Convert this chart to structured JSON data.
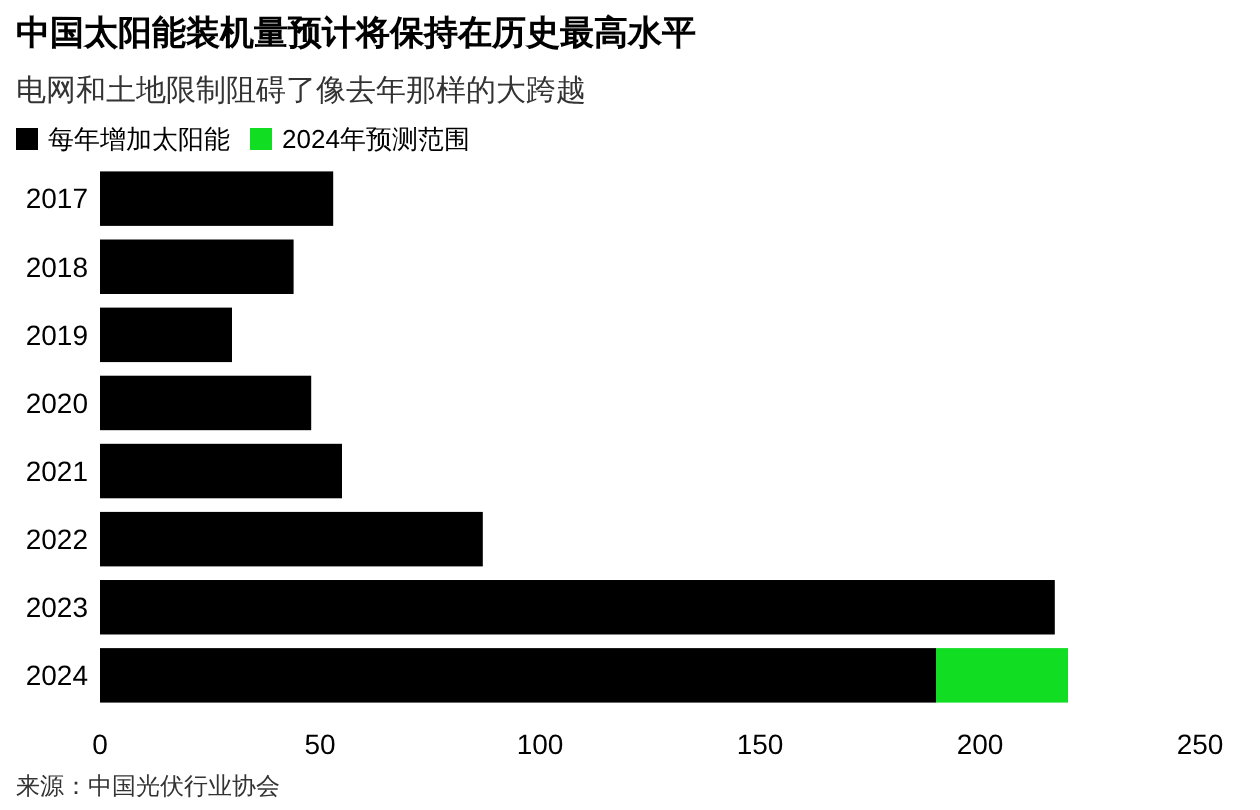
{
  "chart_data": {
    "type": "bar",
    "orientation": "horizontal",
    "stacked": true,
    "title": "中国太阳能装机量预计将保持在历史最高水平",
    "subtitle": "电网和土地限制阻碍了像去年那样的大跨越",
    "categories": [
      "2017",
      "2018",
      "2019",
      "2020",
      "2021",
      "2022",
      "2023",
      "2024"
    ],
    "series": [
      {
        "name": "每年增加太阳能",
        "color": "#000000",
        "values": [
          53,
          44,
          30,
          48,
          55,
          87,
          217,
          190
        ]
      },
      {
        "name": "2024年预测范围",
        "color": "#11dd22",
        "values": [
          null,
          null,
          null,
          null,
          null,
          null,
          null,
          30
        ]
      }
    ],
    "xlim": [
      0,
      250
    ],
    "xticks": [
      0,
      50,
      100,
      150,
      200,
      250
    ],
    "grid": false,
    "legend": "top left",
    "annotations": [
      "来源：中国光伏行业协会"
    ]
  }
}
